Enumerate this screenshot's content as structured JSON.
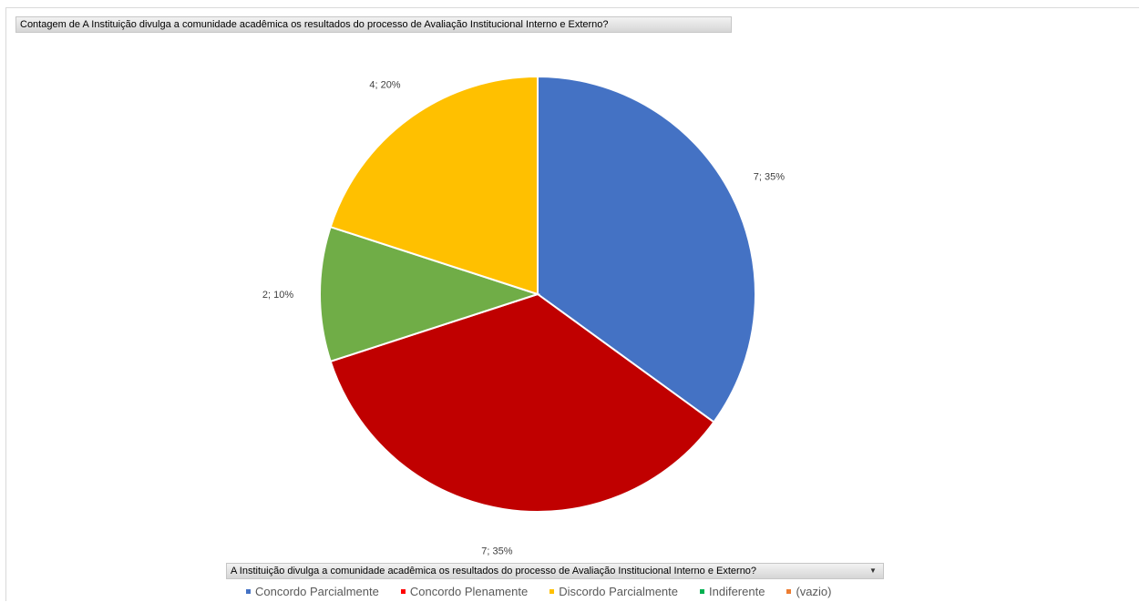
{
  "title_field": "Contagem de A Instituição divulga a comunidade acadêmica os resultados do processo de Avaliação Institucional Interno e Externo?",
  "axis_field": {
    "label": "A Instituição divulga a comunidade acadêmica os resultados do processo de Avaliação Institucional Interno e Externo?",
    "dropdown_icon": "▼"
  },
  "chart_data": {
    "type": "pie",
    "title": "",
    "start_angle_deg": 0,
    "direction": "clockwise",
    "slices": [
      {
        "name": "Concordo Parcialmente",
        "value": 7,
        "percent": 35,
        "label": "7; 35%",
        "color": "#4472C4"
      },
      {
        "name": "Concordo Plenamente",
        "value": 7,
        "percent": 35,
        "label": "7; 35%",
        "color": "#C00000"
      },
      {
        "name": "Indiferente",
        "value": 2,
        "percent": 10,
        "label": "2; 10%",
        "color": "#70AD47"
      },
      {
        "name": "Discordo Parcialmente",
        "value": 4,
        "percent": 20,
        "label": "4; 20%",
        "color": "#FFC000"
      }
    ],
    "legend": [
      {
        "name": "Concordo Parcialmente",
        "color": "#4472C4"
      },
      {
        "name": "Concordo Plenamente",
        "color": "#FF0000"
      },
      {
        "name": "Discordo Parcialmente",
        "color": "#FFC000"
      },
      {
        "name": "Indiferente",
        "color": "#00B050"
      },
      {
        "name": "(vazio)",
        "color": "#ED7D31"
      }
    ],
    "legend_position": "bottom"
  }
}
